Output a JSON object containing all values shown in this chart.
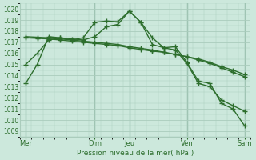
{
  "bg_color": "#cce8dc",
  "grid_color": "#aaccbc",
  "line_color": "#2d6e2d",
  "marker": "+",
  "markersize": 4,
  "linewidth": 1.0,
  "xlabel_text": "Pression niveau de la mer( hPa )",
  "x_ticks_labels": [
    "Mer",
    "",
    "Dim",
    "Jeu",
    "",
    "Ven",
    "",
    "Sam"
  ],
  "x_ticks_pos": [
    0,
    3,
    6,
    9,
    12,
    14,
    17,
    19
  ],
  "ylim": [
    1008.5,
    1020.5
  ],
  "yticks": [
    1009,
    1010,
    1011,
    1012,
    1013,
    1014,
    1015,
    1016,
    1017,
    1018,
    1019,
    1020
  ],
  "n_points": 20,
  "series": [
    [
      1013.3,
      1015.0,
      1017.5,
      1017.4,
      1017.2,
      1017.4,
      1018.8,
      1018.9,
      1018.85,
      1019.8,
      1018.8,
      1017.4,
      1016.5,
      1016.3,
      1015.1,
      1013.3,
      1013.0,
      1011.8,
      1011.3,
      1010.8
    ],
    [
      1017.4,
      1017.35,
      1017.3,
      1017.2,
      1017.1,
      1017.0,
      1016.9,
      1016.8,
      1016.7,
      1016.5,
      1016.35,
      1016.2,
      1016.1,
      1015.9,
      1015.7,
      1015.5,
      1015.2,
      1014.8,
      1014.5,
      1014.1
    ],
    [
      1017.5,
      1017.45,
      1017.4,
      1017.3,
      1017.2,
      1017.1,
      1017.0,
      1016.9,
      1016.8,
      1016.6,
      1016.45,
      1016.3,
      1016.1,
      1015.9,
      1015.7,
      1015.4,
      1015.1,
      1014.7,
      1014.3,
      1013.9
    ],
    [
      1015.0,
      1016.0,
      1017.2,
      1017.4,
      1017.3,
      1017.2,
      1017.5,
      1018.4,
      1018.6,
      1019.8,
      1018.8,
      1016.8,
      1016.5,
      1016.6,
      1015.2,
      1013.5,
      1013.3,
      1011.5,
      1011.0,
      1009.5
    ]
  ],
  "vline_positions": [
    0,
    6,
    9,
    14,
    19
  ],
  "vline_color": "#6a9e8a"
}
